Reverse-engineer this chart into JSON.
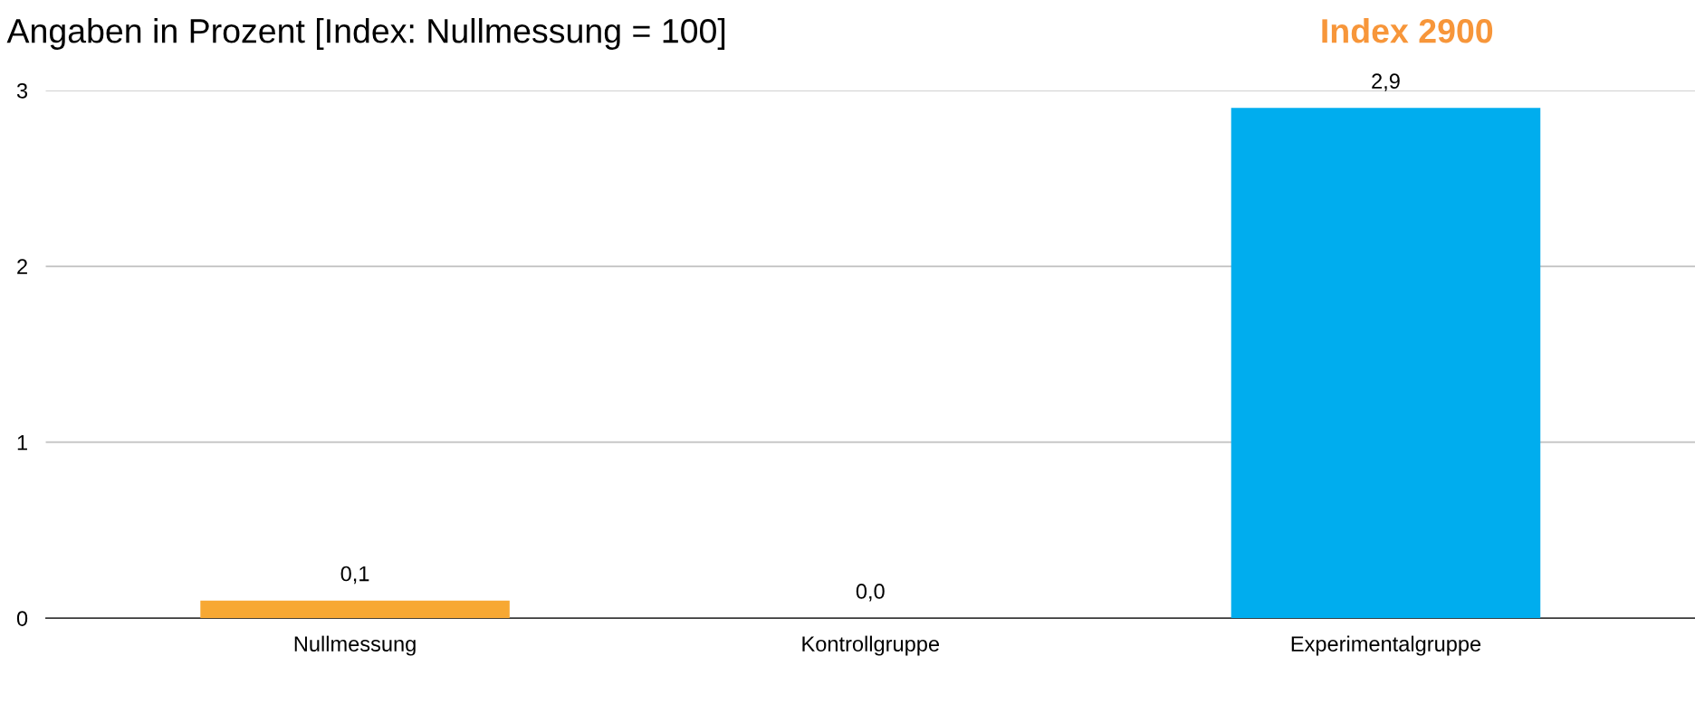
{
  "chart_data": {
    "type": "bar",
    "subtitle": "Angaben in Prozent [Index: Nullmessung = 100]",
    "annotations": [
      "Index 2900"
    ],
    "categories": [
      "Nullmessung",
      "Kontrollgruppe",
      "Experimentalgruppe"
    ],
    "values": [
      0.1,
      0.0,
      2.9
    ],
    "colors": [
      "#f7a833",
      "#9e9e9e",
      "#00adee"
    ],
    "value_labels": [
      "0,1",
      "0,0",
      "2,9"
    ],
    "ylim": [
      0,
      3
    ],
    "yticks": [
      0,
      1,
      2,
      3
    ],
    "grid": "y"
  }
}
